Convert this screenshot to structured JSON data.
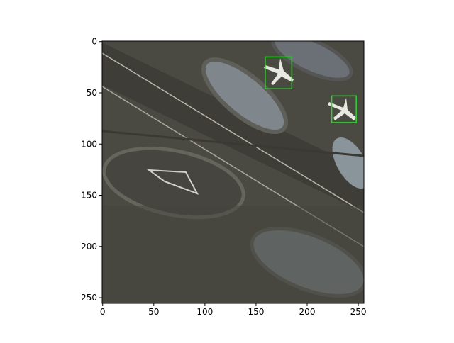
{
  "chart_data": {
    "type": "image",
    "xlim": [
      -0.5,
      255.5
    ],
    "ylim": [
      255.5,
      -0.5
    ],
    "xticks": [
      0,
      50,
      100,
      150,
      200,
      250
    ],
    "yticks": [
      0,
      50,
      100,
      150,
      200,
      250
    ],
    "box_color": "#22dd22",
    "boxes": [
      {
        "x0": 159,
        "y0": 15,
        "x1": 185,
        "y1": 46
      },
      {
        "x0": 224,
        "y0": 53,
        "x1": 248,
        "y1": 79
      }
    ]
  }
}
